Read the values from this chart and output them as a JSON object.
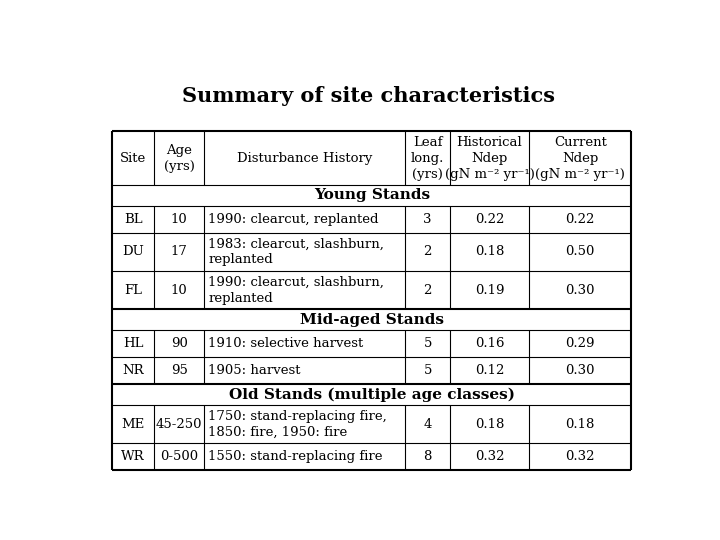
{
  "title": "Summary of site characteristics",
  "col_headers_line1": [
    "Site",
    "Age",
    "Disturbance History",
    "Leaf",
    "Historical",
    "Current"
  ],
  "col_headers_line2": [
    "",
    "(yrs)",
    "",
    "long.",
    "Ndep",
    "Ndep"
  ],
  "col_headers_line3": [
    "",
    "",
    "",
    "(yrs)",
    "(gN m⁻² yr⁻¹)",
    "(gN m⁻² yr⁻¹)"
  ],
  "rows": [
    {
      "type": "section",
      "label": "Young Stands"
    },
    {
      "type": "data",
      "site": "BL",
      "age": "10",
      "disturbance": "1990: clearcut, replanted",
      "leaf": "3",
      "hist": "0.22",
      "curr": "0.22",
      "multiline": false
    },
    {
      "type": "data",
      "site": "DU",
      "age": "17",
      "disturbance": "1983: clearcut, slashburn,\nreplanted",
      "leaf": "2",
      "hist": "0.18",
      "curr": "0.50",
      "multiline": true
    },
    {
      "type": "data",
      "site": "FL",
      "age": "10",
      "disturbance": "1990: clearcut, slashburn,\nreplanted",
      "leaf": "2",
      "hist": "0.19",
      "curr": "0.30",
      "multiline": true
    },
    {
      "type": "section",
      "label": "Mid-aged Stands"
    },
    {
      "type": "data",
      "site": "HL",
      "age": "90",
      "disturbance": "1910: selective harvest",
      "leaf": "5",
      "hist": "0.16",
      "curr": "0.29",
      "multiline": false
    },
    {
      "type": "data",
      "site": "NR",
      "age": "95",
      "disturbance": "1905: harvest",
      "leaf": "5",
      "hist": "0.12",
      "curr": "0.30",
      "multiline": false
    },
    {
      "type": "section",
      "label": "Old Stands (multiple age classes)"
    },
    {
      "type": "data",
      "site": "ME",
      "age": "45-250",
      "disturbance": "1750: stand-replacing fire,\n1850: fire, 1950: fire",
      "leaf": "4",
      "hist": "0.18",
      "curr": "0.18",
      "multiline": true
    },
    {
      "type": "data",
      "site": "WR",
      "age": "0-500",
      "disturbance": "1550: stand-replacing fire",
      "leaf": "8",
      "hist": "0.32",
      "curr": "0.32",
      "multiline": false
    }
  ],
  "bg_color": "#ffffff",
  "text_color": "#000000",
  "line_color": "#000000",
  "title_fontsize": 15,
  "header_fontsize": 9.5,
  "cell_fontsize": 9.5,
  "section_fontsize": 11
}
